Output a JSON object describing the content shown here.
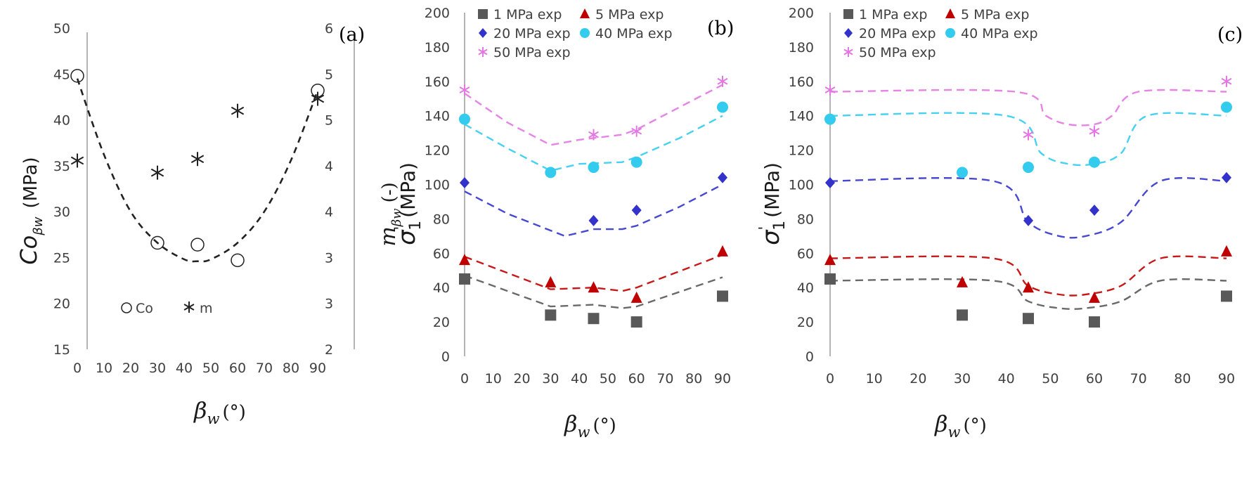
{
  "chart_data": [
    {
      "panel_label": "(a)",
      "type": "scatter",
      "x": [
        0,
        30,
        45,
        60,
        90
      ],
      "xticks": [
        "0",
        "10",
        "20",
        "30",
        "40",
        "50",
        "60",
        "70",
        "80",
        "90"
      ],
      "xlim": [
        0,
        90
      ],
      "yticks_left": [
        "15",
        "20",
        "25",
        "30",
        "35",
        "40",
        "45",
        "50"
      ],
      "ylim_left": [
        15,
        50
      ],
      "yticks_right": [
        "2",
        "3",
        "3",
        "4",
        "4",
        "5",
        "5",
        "6"
      ],
      "ylim_right": [
        2,
        6
      ],
      "xlabel_symbol": "β",
      "xlabel_sub": "w",
      "xlabel_unit": "(°)",
      "ylabel_left_symbol": "Co",
      "ylabel_left_sub": "βw",
      "ylabel_left_unit": "(MPa)",
      "ylabel_right_symbol": "m",
      "ylabel_right_sub": "βw",
      "ylabel_right_unit": "(-)",
      "legend": [
        {
          "name": "Co",
          "marker": "circle-open"
        },
        {
          "name": "m",
          "marker": "asterisk"
        }
      ],
      "series": [
        {
          "name": "Co",
          "axis": "left",
          "values": [
            44.8,
            26.6,
            26.4,
            24.7,
            43.2
          ]
        },
        {
          "name": "m",
          "axis": "right",
          "values": [
            4.35,
            4.2,
            4.37,
            4.97,
            5.12
          ]
        },
        {
          "name": "",
          "axis": "left",
          "style": "dashed-fit",
          "x": [
            0,
            10,
            20,
            30,
            40,
            45,
            50,
            60,
            70,
            80,
            90
          ],
          "values": [
            44.5,
            36.2,
            30.0,
            26.6,
            24.8,
            24.6,
            24.8,
            26.6,
            30.0,
            35.6,
            43.2
          ]
        }
      ],
      "colors": {
        "markers": "#222222",
        "fit": "#222222"
      }
    },
    {
      "panel_label": "(b)",
      "type": "scatter",
      "x": [
        0,
        30,
        45,
        60,
        90
      ],
      "xticks": [
        "0",
        "10",
        "20",
        "30",
        "40",
        "50",
        "60",
        "70",
        "80",
        "90"
      ],
      "xlim": [
        0,
        90
      ],
      "yticks": [
        "0",
        "20",
        "40",
        "60",
        "80",
        "100",
        "120",
        "140",
        "160",
        "180",
        "200"
      ],
      "ylim": [
        0,
        200
      ],
      "xlabel_symbol": "β",
      "xlabel_sub": "w",
      "xlabel_unit": "(°)",
      "ylabel_symbol": "σ",
      "ylabel_prime": "'",
      "ylabel_sub": "1",
      "ylabel_unit": "(MPa)",
      "series": [
        {
          "name": "1 MPa exp",
          "marker": "square",
          "color": "#595959",
          "values": [
            45,
            24,
            22,
            20,
            35
          ],
          "fit": {
            "x": [
              0,
              30,
              45,
              55,
              60,
              90
            ],
            "values": [
              47,
              29,
              30,
              28,
              29,
              46
            ]
          }
        },
        {
          "name": "5 MPa exp",
          "marker": "triangle",
          "color": "#c00000",
          "values": [
            56,
            43,
            40,
            34,
            61
          ],
          "fit": {
            "x": [
              0,
              30,
              45,
              55,
              60,
              90
            ],
            "values": [
              58,
              39,
              40,
              38,
              40,
              59
            ]
          }
        },
        {
          "name": "20 MPa exp",
          "marker": "diamond",
          "color": "#3333cc",
          "values": [
            101,
            null,
            79,
            85,
            104
          ],
          "fit": {
            "x": [
              0,
              15,
              35,
              45,
              55,
              60,
              75,
              90
            ],
            "values": [
              96,
              83,
              70,
              74,
              74,
              76,
              87,
              100
            ]
          }
        },
        {
          "name": "40 MPa exp",
          "marker": "circle",
          "color": "#33ccee",
          "values": [
            138,
            107,
            110,
            113,
            145
          ],
          "fit": {
            "x": [
              0,
              15,
              30,
              40,
              55,
              60,
              75,
              90
            ],
            "values": [
              135,
              121,
              108,
              112,
              113,
              116,
              127,
              140
            ]
          }
        },
        {
          "name": "50 MPa exp",
          "marker": "asterisk",
          "color": "#e377e3",
          "values": [
            155,
            null,
            129,
            131,
            160
          ],
          "fit": {
            "x": [
              0,
              15,
              30,
              40,
              55,
              60,
              75,
              90
            ],
            "values": [
              153,
              136,
              123,
              126,
              129,
              132,
              145,
              158
            ]
          }
        }
      ]
    },
    {
      "panel_label": "(c)",
      "type": "scatter",
      "x": [
        0,
        30,
        45,
        60,
        90
      ],
      "xticks": [
        "0",
        "10",
        "20",
        "30",
        "40",
        "50",
        "60",
        "70",
        "80",
        "90"
      ],
      "xlim": [
        0,
        90
      ],
      "yticks": [
        "0",
        "20",
        "40",
        "60",
        "80",
        "100",
        "120",
        "140",
        "160",
        "180",
        "200"
      ],
      "ylim": [
        0,
        200
      ],
      "xlabel_symbol": "β",
      "xlabel_sub": "w",
      "xlabel_unit": "(°)",
      "ylabel_symbol": "σ",
      "ylabel_prime": "'",
      "ylabel_sub": "1",
      "ylabel_unit": "(MPa)",
      "series": [
        {
          "name": "1 MPa exp",
          "marker": "square",
          "color": "#595959",
          "values": [
            45,
            24,
            22,
            20,
            35
          ],
          "fit": {
            "x": [
              0,
              37,
              45,
              52,
              58,
              66,
              75,
              90
            ],
            "values": [
              44,
              44,
              32,
              28,
              28,
              32,
              44,
              44
            ]
          }
        },
        {
          "name": "5 MPa exp",
          "marker": "triangle",
          "color": "#c00000",
          "values": [
            56,
            43,
            40,
            34,
            61
          ],
          "fit": {
            "x": [
              0,
              37,
              45,
              52,
              58,
              66,
              75,
              90
            ],
            "values": [
              57,
              57,
              41,
              36,
              36,
              41,
              57,
              57
            ]
          }
        },
        {
          "name": "20 MPa exp",
          "marker": "diamond",
          "color": "#3333cc",
          "values": [
            101,
            null,
            79,
            85,
            104
          ],
          "fit": {
            "x": [
              0,
              37,
              45,
              52,
              58,
              66,
              75,
              90
            ],
            "values": [
              102,
              102,
              78,
              70,
              70,
              78,
              102,
              102
            ]
          }
        },
        {
          "name": "40 MPa exp",
          "marker": "circle",
          "color": "#33ccee",
          "values": [
            138,
            107,
            110,
            113,
            145
          ],
          "fit": {
            "x": [
              0,
              40,
              48,
              54,
              60,
              66,
              72,
              90
            ],
            "values": [
              140,
              140,
              118,
              112,
              112,
              118,
              140,
              140
            ]
          }
        },
        {
          "name": "50 MPa exp",
          "marker": "asterisk",
          "color": "#e377e3",
          "values": [
            155,
            null,
            129,
            131,
            160
          ],
          "fit": {
            "x": [
              0,
              42,
              49,
              54,
              60,
              64,
              70,
              90
            ],
            "values": [
              154,
              154,
              140,
              135,
              135,
              140,
              154,
              154
            ]
          }
        }
      ]
    }
  ]
}
